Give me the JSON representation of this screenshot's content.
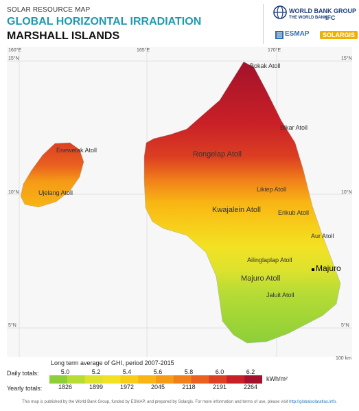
{
  "header": {
    "subtitle": "SOLAR RESOURCE MAP",
    "title_main": "GLOBAL HORIZONTAL IRRADIATION",
    "title_region": "MARSHALL ISLANDS"
  },
  "logos": {
    "wbg_line1": "WORLD BANK GROUP",
    "wb_line": "THE WORLD BANK",
    "ifc": "IFC",
    "esmap": "ESMAP",
    "solargis": "SOLARGIS"
  },
  "map": {
    "lon_labels": [
      "160°E",
      "165°E",
      "170°E"
    ],
    "lat_labels": [
      "15°N",
      "10°N",
      "5°N"
    ],
    "places": {
      "bokak": "Bokak Atoll",
      "bikar": "Bikar Atoll",
      "enewetak": "Enewetak Atoll",
      "rongelap": "Rongelap Atoll",
      "ujelang": "Ujelang Atoll",
      "likiep": "Likiep Atoll",
      "kwajalein": "Kwajalein Atoll",
      "erikub": "Erikub Atoll",
      "aur": "Aur Atoll",
      "ailinglaplap": "Ailinglaplap Atoll",
      "majuro_city": "Majuro",
      "majuro_atoll": "Majuro Atoll",
      "jaluit": "Jaluit Atoll"
    },
    "scale_label": "100 km"
  },
  "legend": {
    "title": "Long term average of GHI, period 2007-2015",
    "daily_label": "Daily totals:",
    "yearly_label": "Yearly totals:",
    "daily_values": [
      "5.0",
      "5.2",
      "5.4",
      "5.6",
      "5.8",
      "6.0",
      "6.2"
    ],
    "yearly_values": [
      "1826",
      "1899",
      "1972",
      "2045",
      "2118",
      "2191",
      "2264"
    ],
    "unit": "kWh/m²",
    "colors": [
      "#8ccf38",
      "#b7dc35",
      "#dde22d",
      "#f3e224",
      "#f7cd19",
      "#f8b514",
      "#f59b16",
      "#f17f1a",
      "#e9601f",
      "#dc3f22",
      "#c92027",
      "#a3122a"
    ]
  },
  "footer": {
    "text": "This map is published by the World Bank Group, funded by ESMAP, and prepared by Solargis. For more information and terms of use, please visit",
    "link": "http://globalsolaratlas.info."
  }
}
